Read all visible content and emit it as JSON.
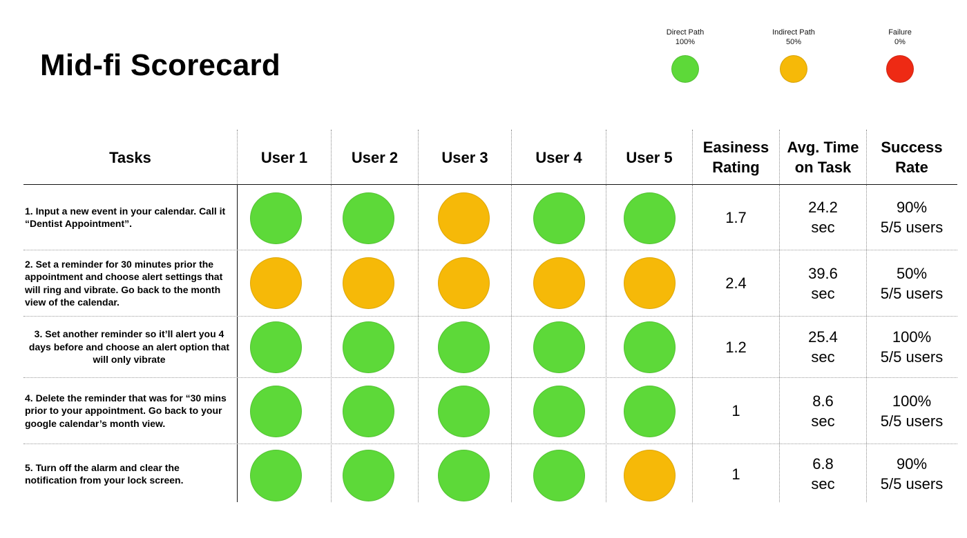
{
  "title": "Mid-fi Scorecard",
  "colors": {
    "direct": "#5dd939",
    "indirect": "#f6b908",
    "failure": "#ee2a14"
  },
  "legend": [
    {
      "line1": "Direct Path",
      "line2": "100%",
      "status": "direct"
    },
    {
      "line1": "Indirect Path",
      "line2": "50%",
      "status": "indirect"
    },
    {
      "line1": "Failure",
      "line2": "0%",
      "status": "failure"
    }
  ],
  "headers": {
    "tasks": "Tasks",
    "users": [
      "User 1",
      "User 2",
      "User 3",
      "User 4",
      "User 5"
    ],
    "easiness": [
      "Easiness",
      "Rating"
    ],
    "avg_time": [
      "Avg. Time",
      "on Task"
    ],
    "success": [
      "Success",
      "Rate"
    ]
  },
  "rows": [
    {
      "task": "1. Input a new event in your calendar. Call it “Dentist Appointment”.",
      "results": [
        "direct",
        "direct",
        "indirect",
        "direct",
        "direct"
      ],
      "easiness": "1.7",
      "time_value": "24.2",
      "time_unit": "sec",
      "success_pct": "90%",
      "success_users": "5/5 users"
    },
    {
      "task": "2. Set a reminder for 30 minutes prior the appointment and choose alert settings that will ring and vibrate. Go back to the month view of the calendar.",
      "results": [
        "indirect",
        "indirect",
        "indirect",
        "indirect",
        "indirect"
      ],
      "easiness": "2.4",
      "time_value": "39.6",
      "time_unit": "sec",
      "success_pct": "50%",
      "success_users": "5/5 users"
    },
    {
      "task": "3. Set another reminder so it’ll alert you 4 days before and choose an alert option that will only vibrate",
      "results": [
        "direct",
        "direct",
        "direct",
        "direct",
        "direct"
      ],
      "easiness": "1.2",
      "time_value": "25.4",
      "time_unit": "sec",
      "success_pct": "100%",
      "success_users": "5/5 users"
    },
    {
      "task": "4. Delete the reminder that was for “30 mins prior to your appointment. Go back to your google calendar’s month view.",
      "results": [
        "direct",
        "direct",
        "direct",
        "direct",
        "direct"
      ],
      "easiness": "1",
      "time_value": "8.6",
      "time_unit": "sec",
      "success_pct": "100%",
      "success_users": "5/5 users"
    },
    {
      "task": "5. Turn off the alarm and clear the notification from your lock screen.",
      "results": [
        "direct",
        "direct",
        "direct",
        "direct",
        "indirect"
      ],
      "easiness": "1",
      "time_value": "6.8",
      "time_unit": "sec",
      "success_pct": "90%",
      "success_users": "5/5 users"
    }
  ]
}
